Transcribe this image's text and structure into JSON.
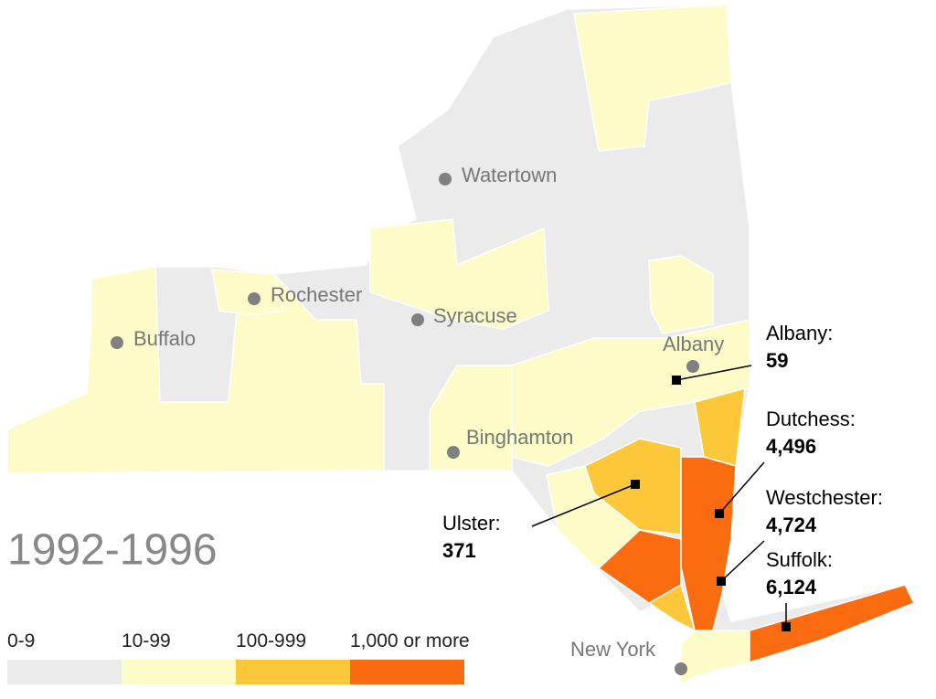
{
  "period": "1992-1996",
  "cities": [
    "Watertown",
    "Rochester",
    "Syracuse",
    "Buffalo",
    "Albany",
    "Binghamton",
    "New York"
  ],
  "callouts": [
    {
      "name": "Albany:",
      "value": "59"
    },
    {
      "name": "Dutchess:",
      "value": "4,496"
    },
    {
      "name": "Westchester:",
      "value": "4,724"
    },
    {
      "name": "Suffolk:",
      "value": "6,124"
    },
    {
      "name": "Ulster:",
      "value": "371"
    }
  ],
  "legend": [
    {
      "label": "0-9",
      "color": "#ebebeb"
    },
    {
      "label": "10-99",
      "color": "#fdfcc8"
    },
    {
      "label": "100-999",
      "color": "#fcc83a"
    },
    {
      "label": "1,000 or more",
      "color": "#fb6b0f"
    }
  ]
}
